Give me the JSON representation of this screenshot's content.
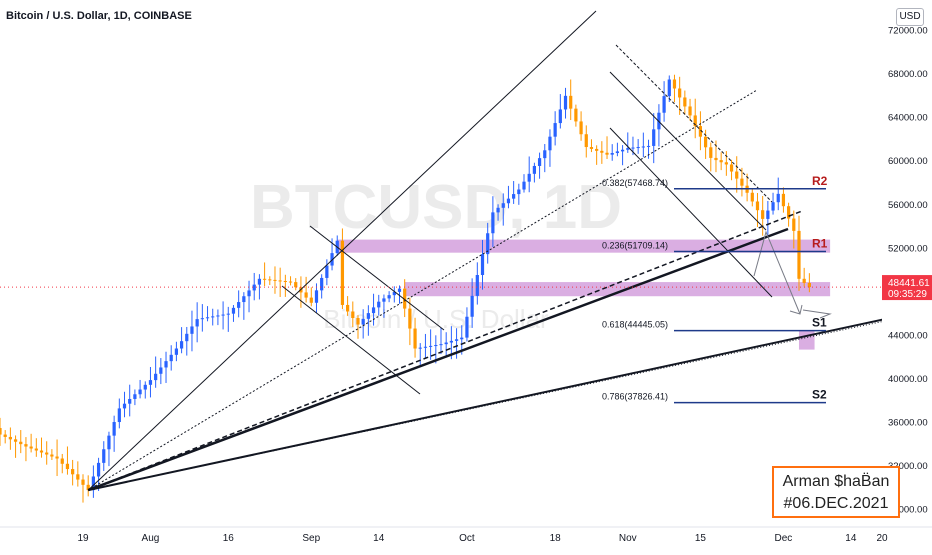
{
  "header": {
    "symbol_line": "Bitcoin / U.S. Dollar, 1D, COINBASE"
  },
  "currency_label": "USD",
  "watermark": {
    "symbol": "BTCUSD, 1D",
    "name": "Bitcoin / U.S. Dollar"
  },
  "brand": {
    "line1": "Arman $haB̈an",
    "line2": "#06.DEC.2021"
  },
  "colors": {
    "up": "#2962ff",
    "down": "#ff9800",
    "zone": "#ce93d8",
    "price_tag": "#f23645",
    "level_line": "#1e3a8a"
  },
  "chart_data": {
    "type": "candlestick",
    "title": "Bitcoin / U.S. Dollar, 1D, COINBASE",
    "y_axis": {
      "ticks": [
        28000,
        32000,
        36000,
        40000,
        44000,
        48000,
        52000,
        56000,
        60000,
        64000,
        68000,
        72000
      ],
      "tick_labels": [
        "28000.00",
        "32000.00",
        "36000.00",
        "40000.00",
        "44000.00",
        "48000.00",
        "52000.00",
        "56000.00",
        "60000.00",
        "64000.00",
        "68000.00",
        "72000.00"
      ],
      "ylim": [
        24300,
        74800
      ]
    },
    "x_axis": {
      "labels": [
        "19",
        "Aug",
        "16",
        "Sep",
        "14",
        "Oct",
        "18",
        "Nov",
        "15",
        "Dec",
        "14",
        "20"
      ],
      "label_dates": [
        "2021-07-19",
        "2021-08-01",
        "2021-08-16",
        "2021-09-01",
        "2021-09-14",
        "2021-10-01",
        "2021-10-18",
        "2021-11-01",
        "2021-11-15",
        "2021-12-01",
        "2021-12-14",
        "2021-12-20"
      ],
      "range": [
        "2021-07-03",
        "2021-12-20"
      ]
    },
    "current_price": {
      "label": "48441.61",
      "value": 48441.61,
      "countdown": "09:35:29"
    },
    "levels": [
      {
        "name": "R2",
        "fib_label": "0.382(57468.74)",
        "value": 57468.74
      },
      {
        "name": "R1",
        "fib_label": "0.236(51709.14)",
        "value": 51709.14
      },
      {
        "name": "S1",
        "fib_label": "0.618(44445.05)",
        "value": 44445.05
      },
      {
        "name": "S2",
        "fib_label": "0.786(37826.41)",
        "value": 37826.41
      }
    ],
    "zones": [
      {
        "name": "resistance-zone",
        "from": "2021-09-06",
        "to": "2021-12-10",
        "low": 51600,
        "high": 52800
      },
      {
        "name": "current-zone",
        "from": "2021-09-19",
        "to": "2021-12-10",
        "low": 47600,
        "high": 48900
      },
      {
        "name": "support-box",
        "from": "2021-12-04",
        "to": "2021-12-07",
        "low": 42700,
        "high": 44400
      }
    ],
    "candle_anchors": [
      {
        "date": "2021-07-03",
        "close": 34900
      },
      {
        "date": "2021-07-08",
        "close": 33800
      },
      {
        "date": "2021-07-14",
        "close": 32700
      },
      {
        "date": "2021-07-20",
        "close": 29800
      },
      {
        "date": "2021-07-26",
        "close": 37300
      },
      {
        "date": "2021-08-01",
        "close": 39900
      },
      {
        "date": "2021-08-06",
        "close": 42800
      },
      {
        "date": "2021-08-10",
        "close": 45500
      },
      {
        "date": "2021-08-16",
        "close": 46000
      },
      {
        "date": "2021-08-22",
        "close": 49200
      },
      {
        "date": "2021-08-28",
        "close": 48900
      },
      {
        "date": "2021-09-01",
        "close": 47000
      },
      {
        "date": "2021-09-06",
        "close": 52700
      },
      {
        "date": "2021-09-07",
        "close": 46800
      },
      {
        "date": "2021-09-10",
        "close": 45000
      },
      {
        "date": "2021-09-14",
        "close": 47100
      },
      {
        "date": "2021-09-18",
        "close": 48300
      },
      {
        "date": "2021-09-21",
        "close": 42800
      },
      {
        "date": "2021-09-26",
        "close": 43200
      },
      {
        "date": "2021-09-30",
        "close": 43800
      },
      {
        "date": "2021-10-06",
        "close": 55300
      },
      {
        "date": "2021-10-11",
        "close": 57400
      },
      {
        "date": "2021-10-16",
        "close": 61000
      },
      {
        "date": "2021-10-20",
        "close": 66000
      },
      {
        "date": "2021-10-24",
        "close": 61300
      },
      {
        "date": "2021-10-28",
        "close": 60600
      },
      {
        "date": "2021-11-01",
        "close": 61200
      },
      {
        "date": "2021-11-05",
        "close": 61400
      },
      {
        "date": "2021-11-09",
        "close": 67500
      },
      {
        "date": "2021-11-13",
        "close": 64200
      },
      {
        "date": "2021-11-17",
        "close": 60300
      },
      {
        "date": "2021-11-20",
        "close": 59700
      },
      {
        "date": "2021-11-24",
        "close": 57100
      },
      {
        "date": "2021-11-27",
        "close": 54700
      },
      {
        "date": "2021-11-30",
        "close": 57000
      },
      {
        "date": "2021-12-03",
        "close": 53600
      },
      {
        "date": "2021-12-04",
        "close": 49200
      },
      {
        "date": "2021-12-06",
        "close": 48441
      }
    ]
  }
}
